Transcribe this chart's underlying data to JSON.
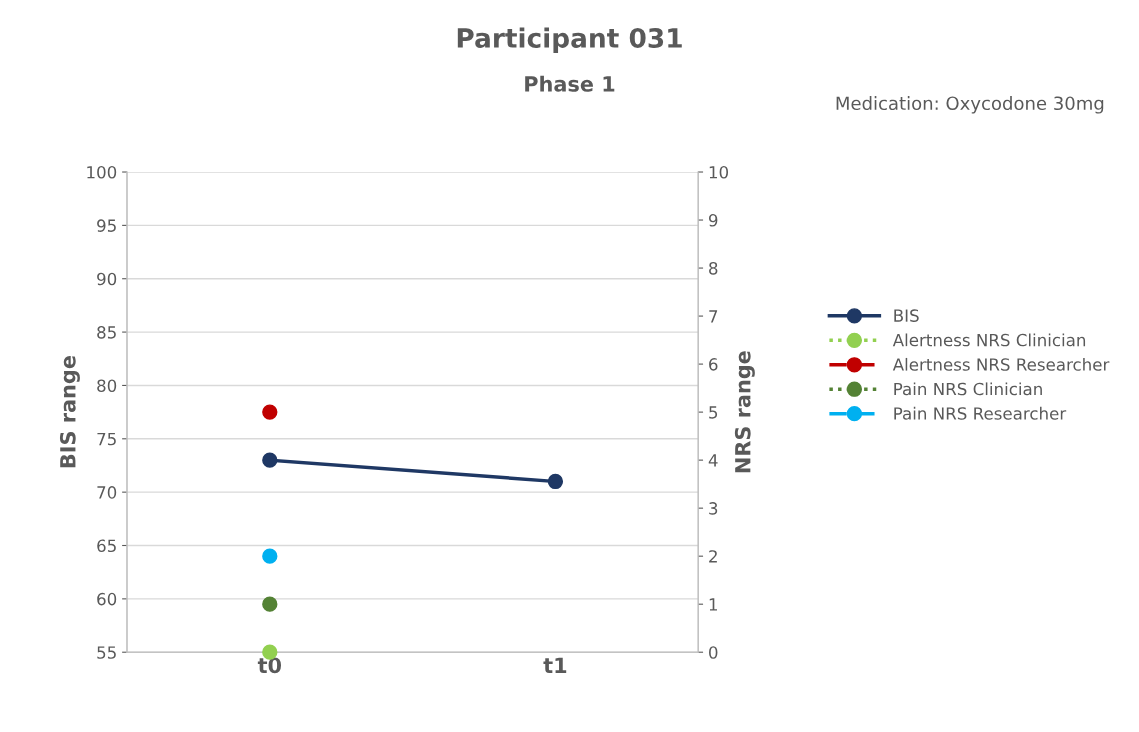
{
  "chart_data": {
    "type": "line",
    "title": "Participant 031",
    "subtitle": "Phase 1",
    "annotations": [
      "Medication: Oxycodone 30mg"
    ],
    "ylabel": "BIS range",
    "y2label": "NRS range",
    "categories": [
      "t0",
      "t1"
    ],
    "ylim": [
      55,
      100
    ],
    "yticks": [
      55,
      60,
      65,
      70,
      75,
      80,
      85,
      90,
      95,
      100
    ],
    "y2lim": [
      0,
      10
    ],
    "y2ticks": [
      0,
      1,
      2,
      3,
      4,
      5,
      6,
      7,
      8,
      9,
      10
    ],
    "grid": "y",
    "legend": "right",
    "marker": "circle",
    "series": [
      {
        "name": "BIS",
        "color": "#1f3864",
        "values": [
          73,
          71
        ],
        "line_style": "solid"
      },
      {
        "name": "Alertness NRS Clinician",
        "color": "#92d050",
        "values": [
          0,
          null
        ],
        "axis": "y2",
        "line_style": "dotted"
      },
      {
        "name": "Alertness NRS Researcher",
        "color": "#c00000",
        "values": [
          5,
          null
        ],
        "axis": "y2",
        "line_style": "dashed"
      },
      {
        "name": "Pain NRS Clinician",
        "color": "#548235",
        "values": [
          1,
          null
        ],
        "axis": "y2",
        "line_style": "dotted"
      },
      {
        "name": "Pain NRS Researcher",
        "color": "#00b0f0",
        "values": [
          2,
          null
        ],
        "axis": "y2",
        "line_style": "dashed"
      }
    ]
  }
}
